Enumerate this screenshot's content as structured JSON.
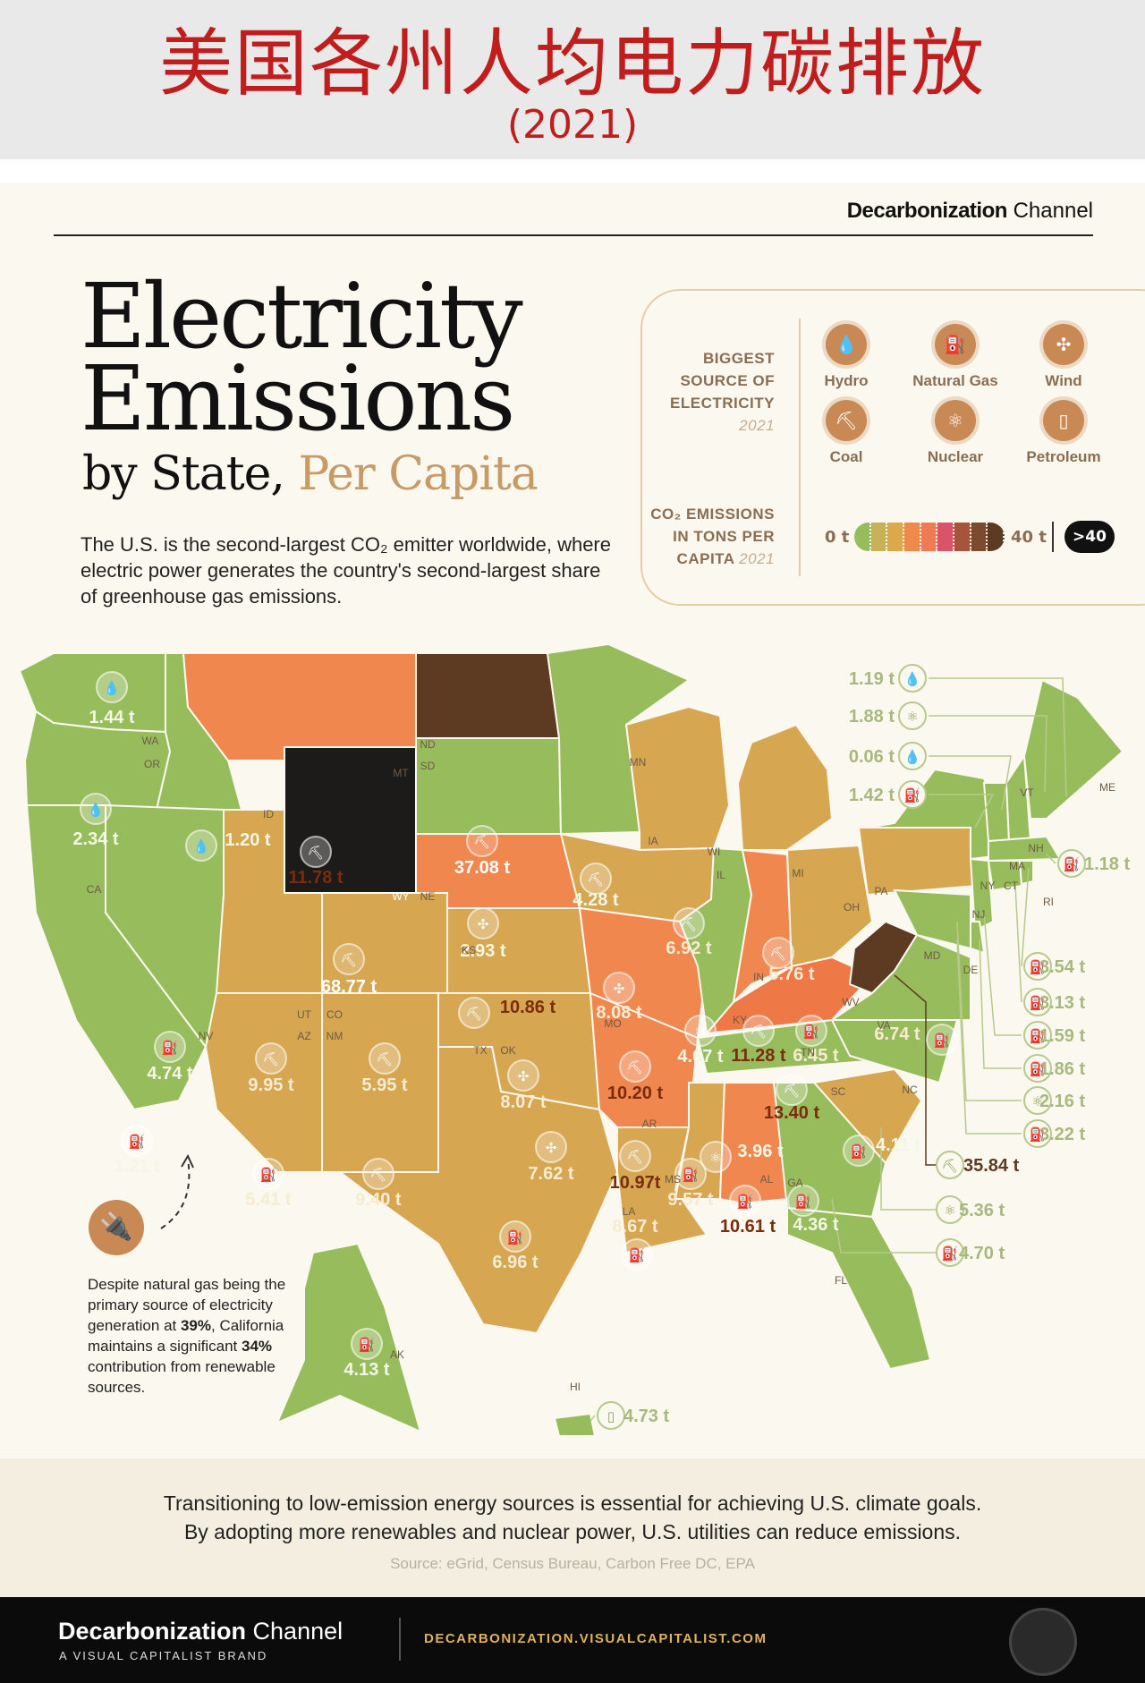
{
  "header": {
    "title_cn": "美国各州人均电力碳排放",
    "subtitle_cn": "(2021)"
  },
  "brand": {
    "name_bold": "Decarbonization",
    "name_light": " Channel",
    "tagline": "A VISUAL CAPITALIST BRAND",
    "url": "DECARBONIZATION.VISUALCAPITALIST.COM"
  },
  "title": {
    "line1": "Electricity",
    "line2": "Emissions",
    "line3_a": "by State, ",
    "line3_b": "Per Capita"
  },
  "intro": "The U.S. is the second-largest CO₂ emitter worldwide, where electric power generates the country's second-largest share of greenhouse gas emissions.",
  "legend": {
    "source_heading_1": "BIGGEST",
    "source_heading_2": "SOURCE OF",
    "source_heading_3": "ELECTRICITY",
    "source_year": "2021",
    "sources": [
      {
        "name": "Hydro",
        "icon": "water-drop-icon",
        "glyph": "💧"
      },
      {
        "name": "Natural Gas",
        "icon": "gas-canister-icon",
        "glyph": "⛽"
      },
      {
        "name": "Wind",
        "icon": "wind-turbine-icon",
        "glyph": "✣"
      },
      {
        "name": "Coal",
        "icon": "coal-cart-icon",
        "glyph": "⛏"
      },
      {
        "name": "Nuclear",
        "icon": "atom-icon",
        "glyph": "⚛"
      },
      {
        "name": "Petroleum",
        "icon": "oil-barrel-icon",
        "glyph": "▯"
      }
    ],
    "scale_heading_1": "CO₂ EMISSIONS",
    "scale_heading_2": "IN TONS PER",
    "scale_heading_3": "CAPITA",
    "scale_year": "2021",
    "scale_min": "0 t",
    "scale_max": "40 t",
    "scale_over": ">40",
    "scale_colors": [
      "#97bc5c",
      "#c7b25a",
      "#d9a94c",
      "#ee8a4b",
      "#f07a55",
      "#d9546a",
      "#a8533c",
      "#7b4a2f",
      "#5d3a22"
    ]
  },
  "chart_data": {
    "type": "choropleth",
    "unit": "t",
    "year": "2021",
    "states": [
      {
        "state": "WA",
        "value": 1.44,
        "label": "1.44 t",
        "source": "Hydro"
      },
      {
        "state": "OR",
        "value": 2.34,
        "label": "2.34 t",
        "source": "Hydro"
      },
      {
        "state": "ID",
        "value": 1.2,
        "label": "1.20 t",
        "source": "Hydro"
      },
      {
        "state": "MT",
        "value": 11.78,
        "label": "11.78 t",
        "source": "Coal"
      },
      {
        "state": "ND",
        "value": 37.08,
        "label": "37.08 t",
        "source": "Coal"
      },
      {
        "state": "MN",
        "value": 4.28,
        "label": "4.28 t",
        "source": "Coal"
      },
      {
        "state": "SD",
        "value": 2.93,
        "label": "2.93 t",
        "source": "Wind"
      },
      {
        "state": "WY",
        "value": 68.77,
        "label": "68.77 t",
        "source": "Coal"
      },
      {
        "state": "WI",
        "value": 6.92,
        "label": "6.92 t",
        "source": "Coal"
      },
      {
        "state": "MI",
        "value": 5.76,
        "label": "5.76 t",
        "source": "Coal"
      },
      {
        "state": "IA",
        "value": 8.08,
        "label": "8.08 t",
        "source": "Wind"
      },
      {
        "state": "NE",
        "value": 10.86,
        "label": "10.86 t",
        "source": "Coal"
      },
      {
        "state": "CA",
        "value": 1.21,
        "label": "1.21 t",
        "source": "Natural Gas"
      },
      {
        "state": "NV",
        "value": 4.74,
        "label": "4.74 t",
        "source": "Natural Gas"
      },
      {
        "state": "UT",
        "value": 9.95,
        "label": "9.95 t",
        "source": "Coal"
      },
      {
        "state": "CO",
        "value": 5.95,
        "label": "5.95 t",
        "source": "Coal"
      },
      {
        "state": "KS",
        "value": 8.07,
        "label": "8.07 t",
        "source": "Wind"
      },
      {
        "state": "MO",
        "value": 10.2,
        "label": "10.20 t",
        "source": "Coal"
      },
      {
        "state": "IL",
        "value": 4.67,
        "label": "4.67 t",
        "source": "Nuclear"
      },
      {
        "state": "IN",
        "value": 11.28,
        "label": "11.28 t",
        "source": "Coal"
      },
      {
        "state": "OH",
        "value": 6.45,
        "label": "6.45 t",
        "source": "Natural Gas"
      },
      {
        "state": "PA",
        "value": 6.74,
        "label": "6.74 t",
        "source": "Natural Gas"
      },
      {
        "state": "KY",
        "value": 13.4,
        "label": "13.40 t",
        "source": "Coal"
      },
      {
        "state": "WV",
        "value": 35.84,
        "label": "35.84 t",
        "source": "Coal"
      },
      {
        "state": "AZ",
        "value": 5.41,
        "label": "5.41 t",
        "source": "Natural Gas"
      },
      {
        "state": "NM",
        "value": 9.4,
        "label": "9.40 t",
        "source": "Coal"
      },
      {
        "state": "OK",
        "value": 7.62,
        "label": "7.62 t",
        "source": "Wind"
      },
      {
        "state": "TX",
        "value": 6.96,
        "label": "6.96 t",
        "source": "Natural Gas"
      },
      {
        "state": "AR",
        "value": 10.97,
        "label": "10.97t",
        "source": "Coal"
      },
      {
        "state": "TN",
        "value": 3.96,
        "label": "3.96 t",
        "source": "Nuclear"
      },
      {
        "state": "NC",
        "value": 4.11,
        "label": "4.11 t",
        "source": "Natural Gas"
      },
      {
        "state": "MS",
        "value": 9.57,
        "label": "9.57 t",
        "source": "Natural Gas"
      },
      {
        "state": "LA",
        "value": 8.67,
        "label": "8.67 t",
        "source": "Natural Gas"
      },
      {
        "state": "AL",
        "value": 10.61,
        "label": "10.61 t",
        "source": "Natural Gas"
      },
      {
        "state": "GA",
        "value": 4.36,
        "label": "4.36 t",
        "source": "Natural Gas"
      },
      {
        "state": "AK",
        "value": 4.13,
        "label": "4.13 t",
        "source": "Natural Gas"
      },
      {
        "state": "HI",
        "value": 4.73,
        "label": "4.73 t",
        "source": "Petroleum"
      },
      {
        "state": "VT",
        "value": 0.06,
        "label": "0.06 t",
        "source": "Hydro"
      },
      {
        "state": "ME",
        "value": 1.19,
        "label": "1.19 t",
        "source": "Hydro"
      },
      {
        "state": "NH",
        "value": 1.88,
        "label": "1.88 t",
        "source": "Nuclear"
      },
      {
        "state": "NY",
        "value": 1.42,
        "label": "1.42 t",
        "source": "Natural Gas"
      },
      {
        "state": "MA",
        "value": 1.18,
        "label": "1.18 t",
        "source": "Natural Gas"
      },
      {
        "state": "RI",
        "value": 3.54,
        "label": "3.54 t",
        "source": "Natural Gas"
      },
      {
        "state": "CT",
        "value": 3.13,
        "label": "3.13 t",
        "source": "Natural Gas"
      },
      {
        "state": "NJ",
        "value": 1.59,
        "label": "1.59 t",
        "source": "Natural Gas"
      },
      {
        "state": "DE",
        "value": 1.86,
        "label": "1.86 t",
        "source": "Natural Gas"
      },
      {
        "state": "MD",
        "value": 2.16,
        "label": "2.16 t",
        "source": "Nuclear"
      },
      {
        "state": "DC",
        "value": 3.22,
        "label": "3.22 t",
        "source": "Natural Gas"
      },
      {
        "state": "SC",
        "value": 5.36,
        "label": "5.36 t",
        "source": "Nuclear"
      },
      {
        "state": "FL",
        "value": 4.7,
        "label": "4.70 t",
        "source": "Natural Gas"
      },
      {
        "state": "VA",
        "value": null,
        "label": "",
        "source": ""
      }
    ]
  },
  "tip": {
    "text_1": "Despite natural gas being the primary source of electricity generation at ",
    "pct_1": "39%",
    "text_2": ", California maintains a significant ",
    "pct_2": "34%",
    "text_3": " contribution from renewable sources."
  },
  "closing": {
    "line1": "Transitioning to low-emission energy sources is essential for achieving U.S. climate goals.",
    "line2": "By adopting more renewables and nuclear power, U.S. utilities can reduce emissions."
  },
  "source": "Source: eGrid, Census Bureau, Carbon Free DC, EPA"
}
